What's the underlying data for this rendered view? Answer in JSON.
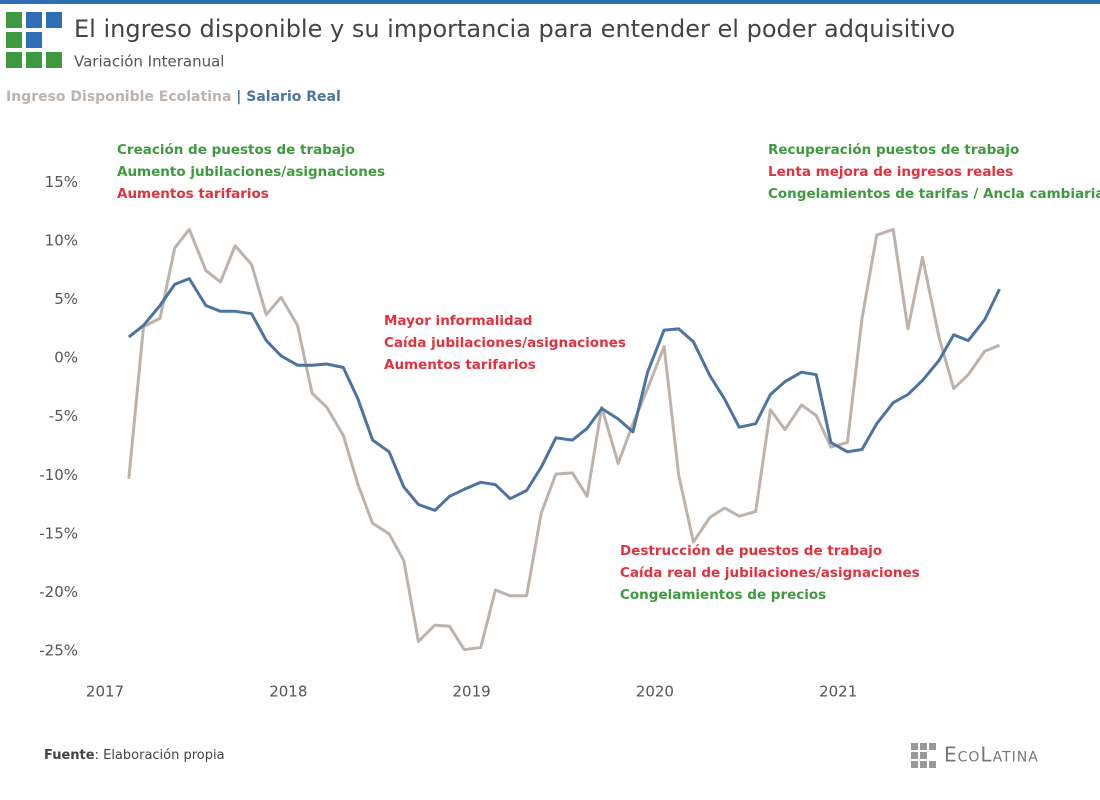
{
  "chart_data": {
    "type": "line",
    "title": "El ingreso disponible y su importancia para entender el poder adquisitivo",
    "subtitle": "Variación Interanual",
    "legend_separator": "|",
    "x": [
      2017.13,
      2017.21,
      2017.3,
      2017.38,
      2017.46,
      2017.55,
      2017.63,
      2017.71,
      2017.8,
      2017.88,
      2017.96,
      2018.05,
      2018.13,
      2018.21,
      2018.3,
      2018.38,
      2018.46,
      2018.55,
      2018.63,
      2018.71,
      2018.8,
      2018.88,
      2018.96,
      2019.05,
      2019.13,
      2019.21,
      2019.3,
      2019.38,
      2019.46,
      2019.55,
      2019.63,
      2019.71,
      2019.8,
      2019.88,
      2019.96,
      2020.05,
      2020.13,
      2020.21,
      2020.3,
      2020.38,
      2020.46,
      2020.55,
      2020.63,
      2020.71,
      2020.8,
      2020.88,
      2020.96,
      2021.05,
      2021.13,
      2021.21,
      2021.3,
      2021.38,
      2021.46,
      2021.55,
      2021.63,
      2021.71,
      2021.8,
      2021.88
    ],
    "series": [
      {
        "name": "Ingreso Disponible Ecolatina",
        "color": "#bdb3ad",
        "values": [
          -10.3,
          2.7,
          3.4,
          9.4,
          11.0,
          7.5,
          6.5,
          9.6,
          8.0,
          3.7,
          5.2,
          2.8,
          -3,
          -4.2,
          -6.6,
          -10.8,
          -14.1,
          -15,
          -17.3,
          -24.2,
          -22.8,
          -22.9,
          -24.9,
          -24.7,
          -19.8,
          -20.3,
          -20.3,
          -13.2,
          -9.9,
          -9.8,
          -11.8,
          -4.2,
          -9,
          -5.6,
          -2.6,
          1,
          -10,
          -15.7,
          -13.6,
          -12.8,
          -13.5,
          -13.1,
          -4.4,
          -6.1,
          -4,
          -4.9,
          -7.6,
          -7.2,
          3.4,
          10.5,
          11,
          2.5,
          8.6,
          1.8,
          -2.6,
          -1.4,
          0.6,
          1.1
        ]
      },
      {
        "name": "Salario Real",
        "color": "#4d74a0",
        "values": [
          1.8,
          2.8,
          4.5,
          6.3,
          6.8,
          4.5,
          4.0,
          4.0,
          3.8,
          1.5,
          0.2,
          -0.6,
          -0.6,
          -0.5,
          -0.8,
          -3.5,
          -7,
          -8,
          -11,
          -12.5,
          -13,
          -11.8,
          -11.2,
          -10.6,
          -10.8,
          -12,
          -11.3,
          -9.3,
          -6.8,
          -7,
          -6,
          -4.3,
          -5.2,
          -6.3,
          -1.2,
          2.4,
          2.5,
          1.4,
          -1.5,
          -3.5,
          -5.9,
          -5.6,
          -3.1,
          -2,
          -1.2,
          -1.4,
          -7.2,
          -8,
          -7.8,
          -5.6,
          -3.8,
          -3.1,
          -1.9,
          -0.2,
          2,
          1.5,
          3.3,
          5.9
        ]
      }
    ],
    "xlim": [
      2017,
      2022
    ],
    "xticks": [
      2017,
      2018,
      2019,
      2020,
      2021
    ],
    "ylim": [
      -28,
      20
    ],
    "yticks": [
      {
        "value": -25,
        "label": "-25%"
      },
      {
        "value": -20,
        "label": "-20%"
      },
      {
        "value": -15,
        "label": "-15%"
      },
      {
        "value": -10,
        "label": "-10%"
      },
      {
        "value": -5,
        "label": "-5%"
      },
      {
        "value": 0,
        "label": "0%"
      },
      {
        "value": 5,
        "label": "5%"
      },
      {
        "value": 10,
        "label": "10%"
      },
      {
        "value": 15,
        "label": "15%"
      }
    ],
    "grid": false,
    "annotations": [
      [
        {
          "text": "Creación de puestos de trabajo",
          "color": "#3e9a3e"
        },
        {
          "text": "Aumento jubilaciones/asignaciones",
          "color": "#3e9a3e"
        },
        {
          "text": "Aumentos tarifarios",
          "color": "#e0323f"
        }
      ],
      [
        {
          "text": "Mayor informalidad",
          "color": "#e0323f"
        },
        {
          "text": "Caída jubilaciones/asignaciones",
          "color": "#e0323f"
        },
        {
          "text": "Aumentos tarifarios",
          "color": "#e0323f"
        }
      ],
      [
        {
          "text": "Destrucción de puestos de trabajo",
          "color": "#e0323f"
        },
        {
          "text": "Caída real de jubilaciones/asignaciones",
          "color": "#e0323f"
        },
        {
          "text": "Congelamientos de precios",
          "color": "#3e9a3e"
        }
      ],
      [
        {
          "text": "Recuperación puestos de trabajo",
          "color": "#3e9a3e"
        },
        {
          "text": "Lenta mejora de ingresos reales",
          "color": "#e0323f"
        },
        {
          "text": "Congelamientos de tarifas / Ancla cambiaria",
          "color": "#3e9a3e"
        }
      ]
    ],
    "source": {
      "label": "Fuente",
      "text": ": Elaboración propia"
    },
    "brand": "EcoLatina"
  }
}
